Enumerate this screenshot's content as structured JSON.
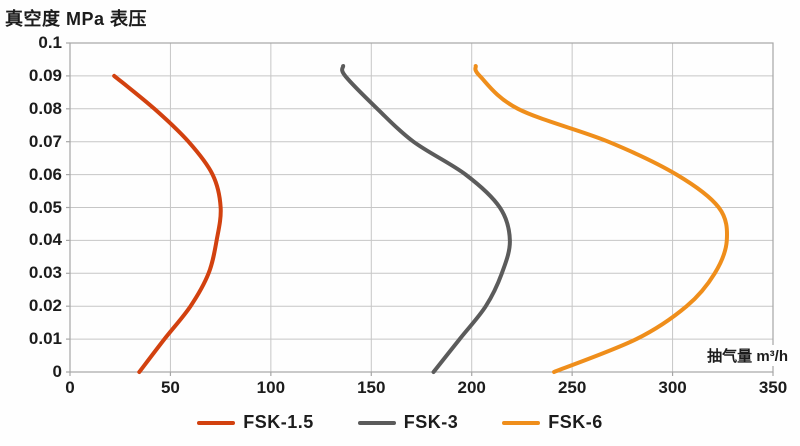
{
  "title": "真空度 MPa 表压",
  "axis": {
    "x_unit_label": "抽气量 m³/h",
    "x_ticks": [
      "0",
      "50",
      "100",
      "150",
      "200",
      "250",
      "300",
      "350"
    ],
    "y_ticks": [
      "0.1",
      "0.09",
      "0.08",
      "0.07",
      "0.06",
      "0.05",
      "0.04",
      "0.03",
      "0.02",
      "0.01",
      "0"
    ]
  },
  "colors": {
    "fsk15": "#d2410f",
    "fsk3": "#5b5b5b",
    "fsk6": "#ef8e1b",
    "gridline": "#c6c6c6",
    "plot_border": "#a6a6a6",
    "text": "#1c1c1c"
  },
  "chart_data": {
    "type": "line",
    "title": "真空度 MPa 表压",
    "xlabel": "抽气量 m³/h",
    "ylabel": "真空度 MPa 表压",
    "xlim": [
      0,
      350
    ],
    "ylim": [
      0,
      0.1
    ],
    "x_tick_step": 50,
    "y_tick_step": 0.01,
    "grid": true,
    "legend_position": "bottom",
    "series": [
      {
        "name": "FSK-1.5",
        "color": "#d2410f",
        "points": [
          [
            22,
            0.09
          ],
          [
            42,
            0.08
          ],
          [
            59,
            0.07
          ],
          [
            71,
            0.06
          ],
          [
            75,
            0.05
          ],
          [
            73,
            0.04
          ],
          [
            69,
            0.03
          ],
          [
            60,
            0.02
          ],
          [
            47,
            0.01
          ],
          [
            34.5,
            0
          ]
        ]
      },
      {
        "name": "FSK-3",
        "color": "#5b5b5b",
        "points": [
          [
            136,
            0.093
          ],
          [
            137,
            0.09
          ],
          [
            153,
            0.08
          ],
          [
            171,
            0.07
          ],
          [
            197,
            0.06
          ],
          [
            214,
            0.05
          ],
          [
            219,
            0.04
          ],
          [
            215,
            0.03
          ],
          [
            207,
            0.02
          ],
          [
            194,
            0.01
          ],
          [
            181,
            0
          ]
        ]
      },
      {
        "name": "FSK-6",
        "color": "#ef8e1b",
        "points": [
          [
            202,
            0.093
          ],
          [
            204,
            0.09
          ],
          [
            223,
            0.08
          ],
          [
            268,
            0.07
          ],
          [
            302,
            0.06
          ],
          [
            323,
            0.05
          ],
          [
            327,
            0.04
          ],
          [
            321,
            0.03
          ],
          [
            307,
            0.02
          ],
          [
            282,
            0.01
          ],
          [
            241,
            0
          ]
        ]
      }
    ]
  }
}
